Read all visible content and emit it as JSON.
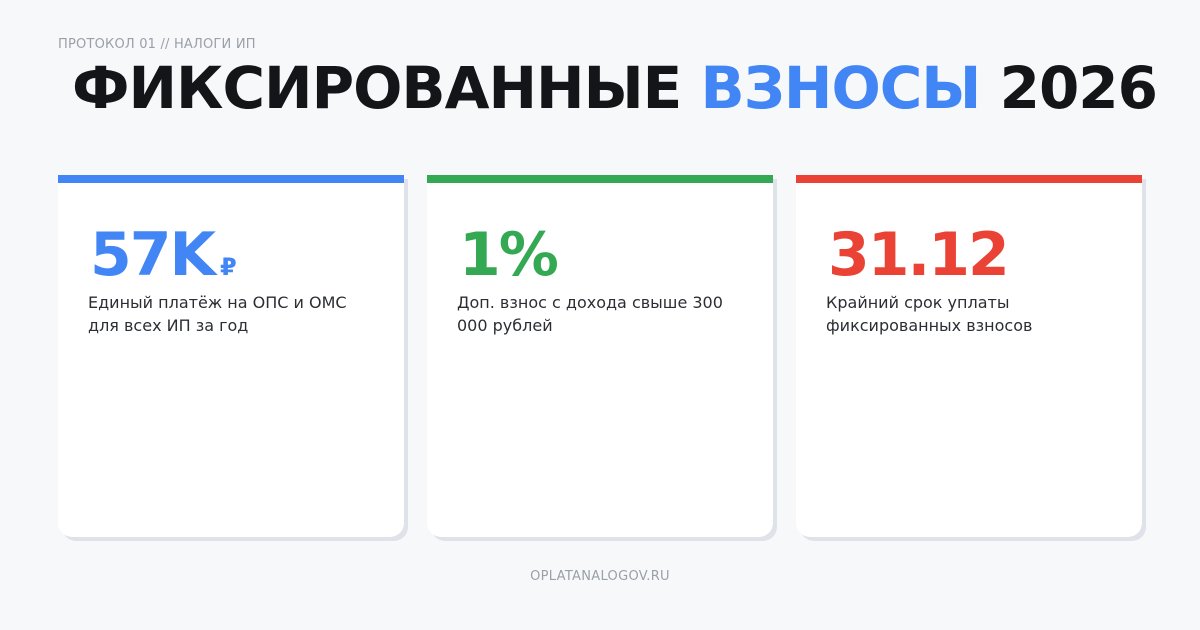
{
  "header": {
    "eyebrow": "ПРОТОКОЛ 01 // НАЛОГИ ИП",
    "title_part1": "ФИКСИРОВАННЫЕ ",
    "title_accent": "ВЗНОСЫ",
    "title_part2": " 2026"
  },
  "colors": {
    "blue": "#4285f4",
    "green": "#34a853",
    "red": "#ea4335"
  },
  "cards": [
    {
      "value": "57K",
      "unit": "₽",
      "description": "Единый платёж на ОПС и ОМС для всех ИП за год",
      "accent": "#4285f4"
    },
    {
      "value": "1%",
      "unit": "",
      "description": "Доп. взнос с дохода свыше 300 000 рублей",
      "accent": "#34a853"
    },
    {
      "value": "31.12",
      "unit": "",
      "description": "Крайний срок уплаты фиксированных взносов",
      "accent": "#ea4335"
    }
  ],
  "footer": {
    "site": "OPLATANALOGOV.RU"
  }
}
